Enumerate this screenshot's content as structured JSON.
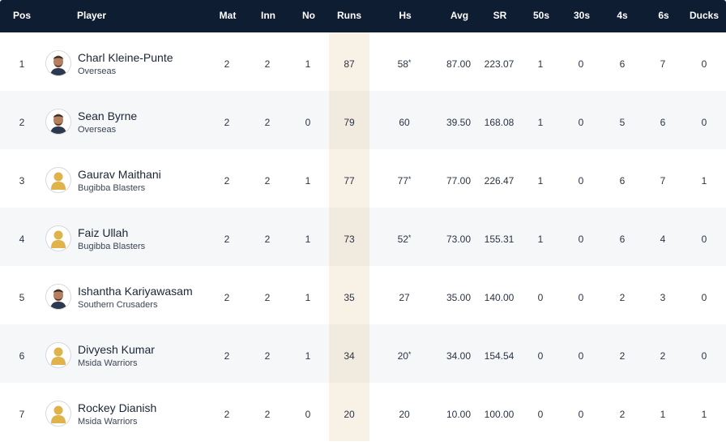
{
  "columns": {
    "pos": "Pos",
    "player": "Player",
    "mat": "Mat",
    "inn": "Inn",
    "no": "No",
    "runs": "Runs",
    "hs": "Hs",
    "avg": "Avg",
    "sr": "SR",
    "fifties": "50s",
    "thirties": "30s",
    "fours": "4s",
    "sixes": "6s",
    "ducks": "Ducks"
  },
  "rows": [
    {
      "pos": "1",
      "name": "Charl Kleine-Punte",
      "team": "Overseas",
      "avatar": "photo",
      "mat": "2",
      "inn": "2",
      "no": "1",
      "runs": "87",
      "hs": "58",
      "hs_not_out": "*",
      "avg": "87.00",
      "sr": "223.07",
      "fifties": "1",
      "thirties": "0",
      "fours": "6",
      "sixes": "7",
      "ducks": "0"
    },
    {
      "pos": "2",
      "name": "Sean Byrne",
      "team": "Overseas",
      "avatar": "photo",
      "mat": "2",
      "inn": "2",
      "no": "0",
      "runs": "79",
      "hs": "60",
      "hs_not_out": "",
      "avg": "39.50",
      "sr": "168.08",
      "fifties": "1",
      "thirties": "0",
      "fours": "5",
      "sixes": "6",
      "ducks": "0"
    },
    {
      "pos": "3",
      "name": "Gaurav Maithani",
      "team": "Bugibba Blasters",
      "avatar": "placeholder",
      "mat": "2",
      "inn": "2",
      "no": "1",
      "runs": "77",
      "hs": "77",
      "hs_not_out": "*",
      "avg": "77.00",
      "sr": "226.47",
      "fifties": "1",
      "thirties": "0",
      "fours": "6",
      "sixes": "7",
      "ducks": "1"
    },
    {
      "pos": "4",
      "name": "Faiz Ullah",
      "team": "Bugibba Blasters",
      "avatar": "placeholder",
      "mat": "2",
      "inn": "2",
      "no": "1",
      "runs": "73",
      "hs": "52",
      "hs_not_out": "*",
      "avg": "73.00",
      "sr": "155.31",
      "fifties": "1",
      "thirties": "0",
      "fours": "6",
      "sixes": "4",
      "ducks": "0"
    },
    {
      "pos": "5",
      "name": "Ishantha Kariyawasam",
      "team": "Southern Crusaders",
      "avatar": "photo",
      "mat": "2",
      "inn": "2",
      "no": "1",
      "runs": "35",
      "hs": "27",
      "hs_not_out": "",
      "avg": "35.00",
      "sr": "140.00",
      "fifties": "0",
      "thirties": "0",
      "fours": "2",
      "sixes": "3",
      "ducks": "0"
    },
    {
      "pos": "6",
      "name": "Divyesh Kumar",
      "team": "Msida Warriors",
      "avatar": "placeholder",
      "mat": "2",
      "inn": "2",
      "no": "1",
      "runs": "34",
      "hs": "20",
      "hs_not_out": "*",
      "avg": "34.00",
      "sr": "154.54",
      "fifties": "0",
      "thirties": "0",
      "fours": "2",
      "sixes": "2",
      "ducks": "0"
    },
    {
      "pos": "7",
      "name": "Rockey Dianish",
      "team": "Msida Warriors",
      "avatar": "placeholder",
      "mat": "2",
      "inn": "2",
      "no": "0",
      "runs": "20",
      "hs": "20",
      "hs_not_out": "",
      "avg": "10.00",
      "sr": "100.00",
      "fifties": "0",
      "thirties": "0",
      "fours": "2",
      "sixes": "1",
      "ducks": "1"
    }
  ],
  "colors": {
    "header_bg": "#0f1d33",
    "runs_highlight": "#f8f1e6",
    "row_alt": "#f6f7f8",
    "placeholder_avatar": "#e0b24a"
  }
}
